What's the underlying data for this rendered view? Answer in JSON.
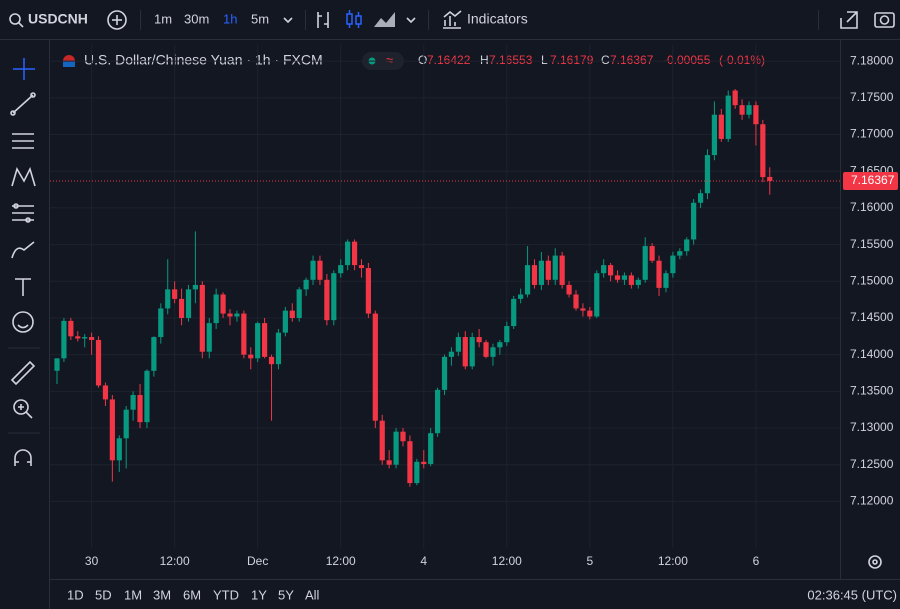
{
  "toolbar": {
    "symbol": "USDCNH",
    "intervals": [
      "1m",
      "30m",
      "1h",
      "5m"
    ],
    "indicators": "Indicators"
  },
  "chart_data": {
    "type": "candlestick",
    "title": "U.S. Dollar/Chinese Yuan · 1h · FXCM",
    "ohlc_letters": [
      "O",
      "H",
      "L",
      "C"
    ],
    "change": -0.00055,
    "change_pct": "(-0.01%)",
    "up_color": "#089981",
    "down_color": "#f23645",
    "grid": true,
    "categories": [
      null,
      null,
      null,
      null,
      null,
      "30",
      null,
      null,
      null,
      null,
      null,
      null,
      null,
      null,
      null,
      null,
      null,
      "12:00",
      null,
      null,
      null,
      null,
      null,
      null,
      null,
      null,
      null,
      null,
      null,
      "Dec",
      null,
      null,
      null,
      null,
      null,
      null,
      null,
      null,
      null,
      null,
      null,
      "12:00",
      null,
      null,
      null,
      null,
      null,
      null,
      null,
      null,
      null,
      null,
      null,
      "4",
      null,
      null,
      null,
      null,
      null,
      null,
      null,
      null,
      null,
      null,
      null,
      "12:00",
      null,
      null,
      null,
      null,
      null,
      null,
      null,
      null,
      null,
      null,
      null,
      "5",
      null,
      null,
      null,
      null,
      null,
      null,
      null,
      null,
      null,
      null,
      null,
      "12:00",
      null,
      null,
      null,
      null,
      null,
      null,
      null,
      null,
      null,
      null,
      null,
      "6",
      null,
      null
    ],
    "open": [
      7.1378,
      7.1395,
      7.1446,
      7.1425,
      7.1422,
      7.1424,
      7.142,
      7.1358,
      7.1339,
      7.1256,
      7.1286,
      7.1325,
      7.1345,
      7.1308,
      7.1378,
      7.1424,
      7.1463,
      7.1489,
      7.1476,
      7.145,
      7.1489,
      7.1495,
      7.1404,
      7.1443,
      7.1482,
      7.1456,
      7.1452,
      7.1456,
      7.14,
      7.1395,
      7.1443,
      7.1397,
      7.1387,
      7.143,
      7.146,
      7.145,
      7.1489,
      7.1502,
      7.1528,
      7.1502,
      7.1447,
      7.1511,
      7.1522,
      7.1554,
      7.1522,
      7.1518,
      7.1456,
      7.131,
      7.1256,
      7.125,
      7.1295,
      7.1282,
      7.1225,
      7.1254,
      7.1251,
      7.1293,
      7.1352,
      7.1397,
      7.1404,
      7.1424,
      7.1384,
      7.1424,
      7.1417,
      7.1397,
      7.141,
      7.1417,
      7.1439,
      7.1476,
      7.1482,
      7.1522,
      7.1495,
      7.1528,
      7.1502,
      7.1535,
      7.1495,
      7.1482,
      7.1463,
      7.146,
      7.1452,
      7.1511,
      7.1522,
      7.1508,
      7.1502,
      7.1508,
      7.1495,
      7.1502,
      7.1548,
      7.1528,
      7.1491,
      7.1511,
      7.1535,
      7.1541,
      7.1557,
      7.1607,
      7.162,
      7.1672,
      7.1727,
      7.1694,
      7.176,
      7.174,
      7.1727,
      7.174,
      7.1714,
      7.16422
    ],
    "high": [
      7.1395,
      7.145,
      7.145,
      7.1432,
      7.1428,
      7.143,
      7.1425,
      7.1362,
      7.1345,
      7.129,
      7.133,
      7.135,
      7.136,
      7.138,
      7.1425,
      7.147,
      7.153,
      7.15,
      7.149,
      7.1495,
      7.1568,
      7.15,
      7.145,
      7.149,
      7.1485,
      7.1462,
      7.146,
      7.146,
      7.141,
      7.1445,
      7.145,
      7.14,
      7.1435,
      7.1465,
      7.147,
      7.1492,
      7.1505,
      7.1535,
      7.1535,
      7.151,
      7.1515,
      7.153,
      7.1557,
      7.1557,
      7.153,
      7.1525,
      7.146,
      7.1318,
      7.127,
      7.13,
      7.13,
      7.129,
      7.1258,
      7.127,
      7.13,
      7.1355,
      7.14,
      7.141,
      7.143,
      7.1432,
      7.143,
      7.1435,
      7.142,
      7.1415,
      7.142,
      7.1445,
      7.148,
      7.149,
      7.1548,
      7.153,
      7.154,
      7.1535,
      7.1545,
      7.154,
      7.15,
      7.1488,
      7.147,
      7.1465,
      7.1515,
      7.153,
      7.1525,
      7.1515,
      7.1512,
      7.1512,
      7.1505,
      7.156,
      7.1552,
      7.1535,
      7.1515,
      7.154,
      7.1545,
      7.156,
      7.1612,
      7.1625,
      7.168,
      7.1745,
      7.1735,
      7.176,
      7.1762,
      7.1748,
      7.1745,
      7.1745,
      7.172,
      7.16553
    ],
    "low": [
      7.136,
      7.139,
      7.142,
      7.1418,
      7.141,
      7.14,
      7.1355,
      7.133,
      7.1227,
      7.124,
      7.1245,
      7.131,
      7.13,
      7.13,
      7.137,
      7.1415,
      7.1455,
      7.147,
      7.144,
      7.1445,
      7.147,
      7.1395,
      7.1395,
      7.1435,
      7.145,
      7.144,
      7.1445,
      7.1395,
      7.138,
      7.139,
      7.1395,
      7.131,
      7.138,
      7.1425,
      7.1445,
      7.1445,
      7.148,
      7.1495,
      7.1495,
      7.144,
      7.144,
      7.1505,
      7.1515,
      7.1515,
      7.1505,
      7.145,
      7.13,
      7.125,
      7.1245,
      7.1245,
      7.1275,
      7.122,
      7.1222,
      7.1245,
      7.1248,
      7.1288,
      7.1345,
      7.1385,
      7.1398,
      7.138,
      7.138,
      7.141,
      7.1395,
      7.1385,
      7.14,
      7.1412,
      7.1435,
      7.147,
      7.1478,
      7.149,
      7.1488,
      7.1495,
      7.1495,
      7.149,
      7.1478,
      7.146,
      7.1452,
      7.1448,
      7.145,
      7.1505,
      7.15,
      7.1498,
      7.1495,
      7.149,
      7.149,
      7.1498,
      7.1525,
      7.148,
      7.1485,
      7.1505,
      7.153,
      7.1535,
      7.155,
      7.16,
      7.1612,
      7.1665,
      7.169,
      7.169,
      7.1735,
      7.172,
      7.1722,
      7.1685,
      7.1635,
      7.16179
    ],
    "close": [
      7.1395,
      7.1446,
      7.1425,
      7.1422,
      7.1424,
      7.142,
      7.1358,
      7.1339,
      7.1256,
      7.1286,
      7.1325,
      7.1345,
      7.1308,
      7.1378,
      7.1424,
      7.1463,
      7.1489,
      7.1476,
      7.145,
      7.1489,
      7.1495,
      7.1404,
      7.1443,
      7.1482,
      7.1456,
      7.1452,
      7.1456,
      7.14,
      7.1395,
      7.1443,
      7.1397,
      7.1387,
      7.143,
      7.146,
      7.145,
      7.1489,
      7.1502,
      7.1528,
      7.1502,
      7.1447,
      7.1511,
      7.1522,
      7.1554,
      7.1522,
      7.1518,
      7.1456,
      7.131,
      7.1256,
      7.125,
      7.1295,
      7.1282,
      7.1225,
      7.1254,
      7.1251,
      7.1293,
      7.1352,
      7.1397,
      7.1404,
      7.1424,
      7.1384,
      7.1424,
      7.1417,
      7.1397,
      7.141,
      7.1417,
      7.1439,
      7.1476,
      7.1482,
      7.1522,
      7.1495,
      7.1528,
      7.1502,
      7.1535,
      7.1495,
      7.1482,
      7.1463,
      7.146,
      7.1452,
      7.1511,
      7.1522,
      7.1508,
      7.1502,
      7.1508,
      7.1495,
      7.1502,
      7.1548,
      7.1528,
      7.1491,
      7.1511,
      7.1535,
      7.1541,
      7.1557,
      7.1607,
      7.162,
      7.1672,
      7.1727,
      7.1694,
      7.1753,
      7.174,
      7.1727,
      7.174,
      7.1714,
      7.1642,
      7.16367
    ],
    "ylim": [
      7.11365,
      7.1822
    ],
    "yticks": [
      {
        "value": 7.12,
        "label": "7.12000"
      },
      {
        "value": 7.125,
        "label": "7.12500"
      },
      {
        "value": 7.13,
        "label": "7.13000"
      },
      {
        "value": 7.135,
        "label": "7.13500"
      },
      {
        "value": 7.14,
        "label": "7.14000"
      },
      {
        "value": 7.145,
        "label": "7.14500"
      },
      {
        "value": 7.15,
        "label": "7.15000"
      },
      {
        "value": 7.155,
        "label": "7.15500"
      },
      {
        "value": 7.16,
        "label": "7.16000"
      },
      {
        "value": 7.165,
        "label": "7.16500"
      },
      {
        "value": 7.17,
        "label": "7.17000"
      },
      {
        "value": 7.175,
        "label": "7.17500"
      },
      {
        "value": 7.18,
        "label": "7.18000"
      }
    ]
  },
  "bottom_bar": {
    "ranges": [
      "1D",
      "5D",
      "1M",
      "3M",
      "6M",
      "YTD",
      "1Y",
      "5Y",
      "All"
    ],
    "clock": "02:36:45 (UTC)"
  }
}
